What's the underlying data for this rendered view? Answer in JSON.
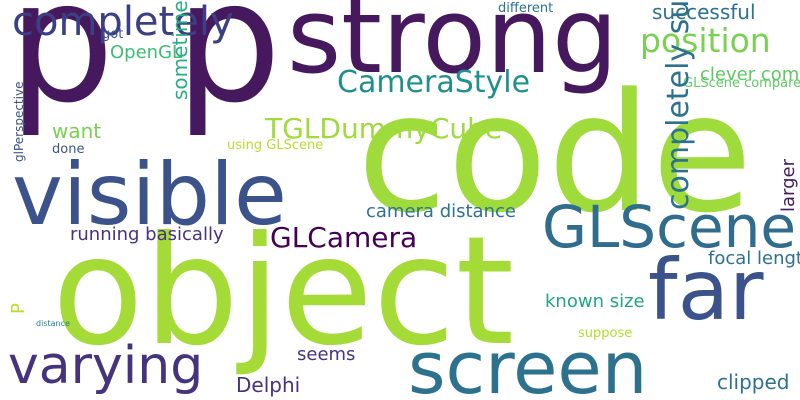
{
  "words": [
    {
      "text": "p",
      "color": "#46195e"
    },
    {
      "text": "p",
      "color": "#46195e"
    },
    {
      "text": "strong",
      "color": "#46195e"
    },
    {
      "text": "completely",
      "color": "#3c3f83"
    },
    {
      "text": "code",
      "color": "#9fdb3a"
    },
    {
      "text": "visible",
      "color": "#3b528b"
    },
    {
      "text": "object",
      "color": "#a5db36"
    },
    {
      "text": "far",
      "color": "#3b528b"
    },
    {
      "text": "screen",
      "color": "#2c728e"
    },
    {
      "text": "varying",
      "color": "#46337e"
    },
    {
      "text": "GLScene",
      "color": "#2f6c8e"
    },
    {
      "text": "CameraStyle",
      "color": "#21908d"
    },
    {
      "text": "position",
      "color": "#7ad151"
    },
    {
      "text": "GLCamera",
      "color": "#440154"
    },
    {
      "text": "TGLDummyCube",
      "color": "#9fdb3a"
    },
    {
      "text": "want",
      "color": "#7ad151"
    },
    {
      "text": "successful",
      "color": "#2c728e"
    },
    {
      "text": "different",
      "color": "#2c728e"
    },
    {
      "text": "clever combination",
      "color": "#5ec962"
    },
    {
      "text": "OpenGL",
      "color": "#3fbc73"
    },
    {
      "text": "got",
      "color": "#3b528b"
    },
    {
      "text": "done",
      "color": "#3b528b"
    },
    {
      "text": "using GLScene",
      "color": "#b8de29"
    },
    {
      "text": "GLScene compared",
      "color": "#5ec962"
    },
    {
      "text": "camera distance",
      "color": "#2c728e"
    },
    {
      "text": "running basically",
      "color": "#46337e"
    },
    {
      "text": "focal length",
      "color": "#2c728e"
    },
    {
      "text": "known size",
      "color": "#21a685"
    },
    {
      "text": "suppose",
      "color": "#b5de2b"
    },
    {
      "text": "seems",
      "color": "#46337e"
    },
    {
      "text": "Delphi",
      "color": "#46337e"
    },
    {
      "text": "clipped",
      "color": "#2c728e"
    },
    {
      "text": "distance",
      "color": "#287c8e"
    },
    {
      "text": "completely surrounded",
      "color": "#2c728e"
    },
    {
      "text": "sometimes",
      "color": "#29af7f"
    },
    {
      "text": "glPerspective",
      "color": "#3b528b"
    },
    {
      "text": "larger",
      "color": "#46195e"
    },
    {
      "text": "P",
      "color": "#b8de29"
    }
  ]
}
